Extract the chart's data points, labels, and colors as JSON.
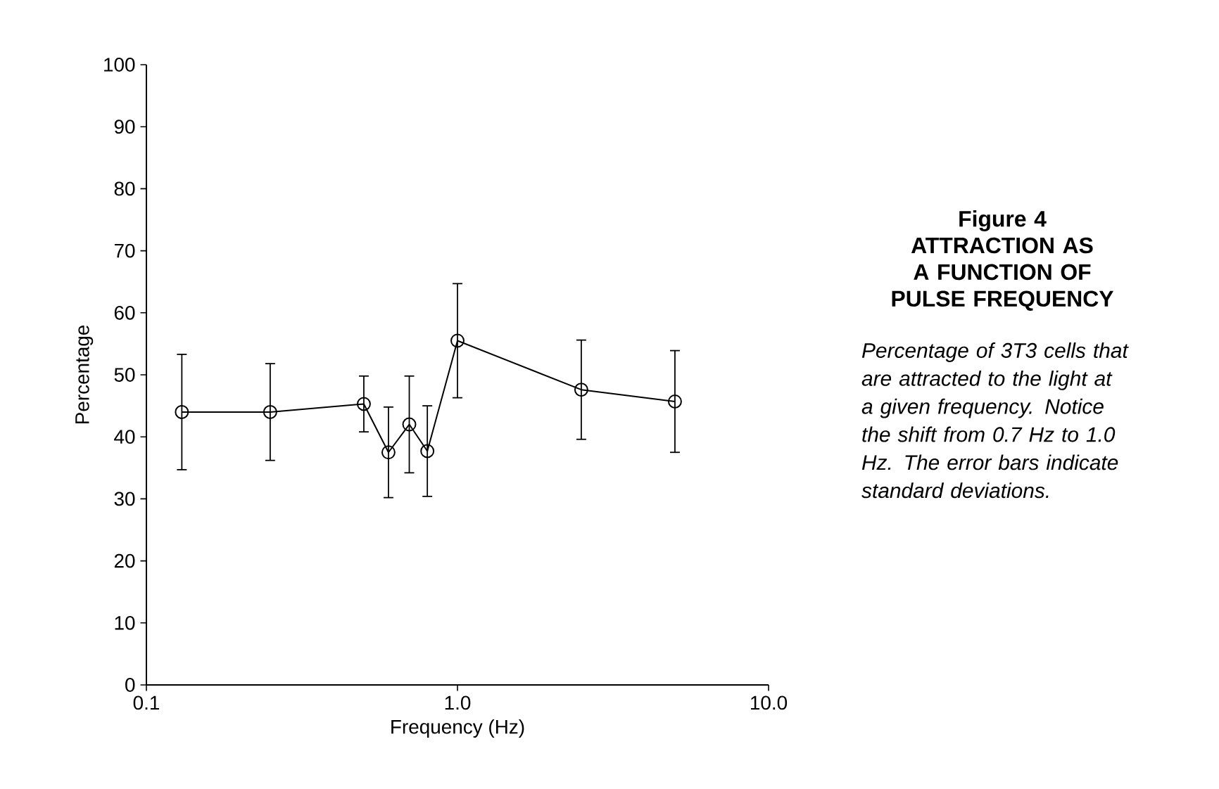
{
  "chart_data": {
    "type": "line",
    "title": "Figure 4",
    "subtitle": "ATTRACTION AS A FUNCTION OF PULSE FREQUENCY",
    "annotations": [
      "*Percentage of 3T3 cells that are attracted to the light at a given frequency. Notice the shift from 0.7 Hz to 1.0 Hz. The error bars indicate standard deviations.*"
    ],
    "xlabel": "Frequency (Hz)",
    "ylabel": "Percentage",
    "x": [
      0.13,
      0.25,
      0.5,
      0.6,
      0.7,
      0.8,
      1.0,
      2.5,
      5.0
    ],
    "series": [
      {
        "color": "#000000",
        "values": [
          44,
          44,
          45.3,
          37.5,
          42,
          37.7,
          55.5,
          47.6,
          45.7
        ],
        "errors": [
          9.3,
          7.8,
          4.5,
          7.3,
          7.8,
          7.3,
          9.2,
          8,
          8.2
        ]
      }
    ],
    "log": "x",
    "xlim": [
      0.1,
      10
    ],
    "ylim": [
      0,
      100
    ],
    "xticks": [
      {
        "value": 0.1,
        "label": "0.1"
      },
      {
        "value": 1,
        "label": "1.0"
      },
      {
        "value": 10,
        "label": "10.0"
      }
    ],
    "yticks": [
      0,
      10,
      20,
      30,
      40,
      50,
      60,
      70,
      80,
      90,
      100
    ],
    "marker": "circle",
    "line_style": "solid"
  }
}
